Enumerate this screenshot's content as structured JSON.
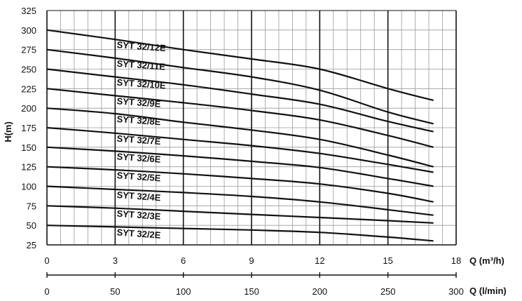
{
  "chart_data": {
    "type": "line",
    "ylabel": "H(m)",
    "xlabel": "Q (m³/h)",
    "x2label": "Q (l/min)",
    "xlim": [
      0,
      18
    ],
    "ylim": [
      25,
      325
    ],
    "x2lim": [
      0,
      300
    ],
    "xticks": [
      0,
      3,
      6,
      9,
      12,
      15,
      18
    ],
    "x2ticks": [
      0,
      50,
      100,
      150,
      200,
      250,
      300
    ],
    "yticks": [
      25,
      50,
      75,
      100,
      125,
      150,
      175,
      200,
      225,
      250,
      275,
      300,
      325
    ],
    "grid": true,
    "series": [
      {
        "name": "SYT 32/12E",
        "x": [
          0,
          3,
          6,
          9,
          12,
          15,
          17
        ],
        "y": [
          300,
          288,
          275,
          263,
          250,
          225,
          210
        ]
      },
      {
        "name": "SYT 32/11E",
        "x": [
          0,
          3,
          6,
          9,
          12,
          15,
          17
        ],
        "y": [
          275,
          264,
          252,
          240,
          223,
          195,
          180
        ]
      },
      {
        "name": "SYT 32/10E",
        "x": [
          0,
          3,
          6,
          9,
          12,
          15,
          17
        ],
        "y": [
          250,
          240,
          230,
          218,
          205,
          183,
          170
        ]
      },
      {
        "name": "SYT 32/9E",
        "x": [
          0,
          3,
          6,
          9,
          12,
          15,
          17
        ],
        "y": [
          225,
          216,
          207,
          197,
          185,
          165,
          150
        ]
      },
      {
        "name": "SYT 32/8E",
        "x": [
          0,
          3,
          6,
          9,
          12,
          15,
          17
        ],
        "y": [
          200,
          193,
          182,
          172,
          160,
          140,
          125
        ]
      },
      {
        "name": "SYT 32/7E",
        "x": [
          0,
          3,
          6,
          9,
          12,
          15,
          17
        ],
        "y": [
          175,
          168,
          160,
          152,
          142,
          128,
          118
        ]
      },
      {
        "name": "SYT 32/6E",
        "x": [
          0,
          3,
          6,
          9,
          12,
          15,
          17
        ],
        "y": [
          150,
          145,
          139,
          132,
          124,
          110,
          100
        ]
      },
      {
        "name": "SYT 32/5E",
        "x": [
          0,
          3,
          6,
          9,
          12,
          15,
          17
        ],
        "y": [
          125,
          121,
          116,
          110,
          103,
          91,
          80
        ]
      },
      {
        "name": "SYT 32/4E",
        "x": [
          0,
          3,
          6,
          9,
          12,
          15,
          17
        ],
        "y": [
          100,
          96,
          92,
          87,
          80,
          70,
          63
        ]
      },
      {
        "name": "SYT 32/3E",
        "x": [
          0,
          3,
          6,
          9,
          12,
          15,
          17
        ],
        "y": [
          75,
          72,
          68,
          64,
          60,
          56,
          53
        ]
      },
      {
        "name": "SYT 32/2E",
        "x": [
          0,
          3,
          6,
          9,
          12,
          15,
          17
        ],
        "y": [
          50,
          48,
          46,
          44,
          41,
          35,
          30
        ]
      }
    ]
  }
}
